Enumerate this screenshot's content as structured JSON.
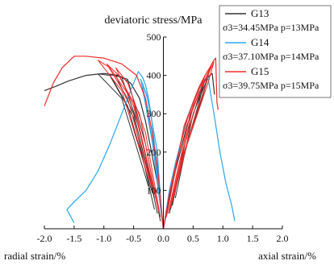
{
  "chart_data": {
    "type": "line",
    "ylabel": "deviatoric stress/MPa",
    "xlabel_right": "axial strain/%",
    "xlabel_left": "radial strain/%",
    "xlim": [
      -2.0,
      2.0
    ],
    "ylim": [
      0,
      500
    ],
    "x_ticks": [
      -2.0,
      -1.5,
      -1.0,
      -0.5,
      0.0,
      0.5,
      1.0,
      1.5,
      2.0
    ],
    "x_tick_labels": [
      "-2.0",
      "-1.5",
      "-1.0",
      "-0.5",
      "0.0",
      "0.5",
      "1.0",
      "1.5",
      "2.0"
    ],
    "y_ticks": [
      0,
      100,
      200,
      300,
      400,
      500
    ],
    "y_tick_labels": [
      "0",
      "100",
      "200",
      "300",
      "400",
      "500"
    ],
    "grid": false,
    "legend_position": "top-right",
    "series": [
      {
        "name": "G13",
        "note": "σ3=34.45MPa p=13MPa",
        "color": "#333333",
        "axial": [
          [
            0,
            0
          ],
          [
            0.1,
            80
          ],
          [
            0.2,
            150
          ],
          [
            0.3,
            210
          ],
          [
            0.4,
            270
          ],
          [
            0.5,
            315
          ],
          [
            0.6,
            355
          ],
          [
            0.7,
            385
          ],
          [
            0.78,
            400
          ],
          [
            0.82,
            405
          ],
          [
            0.86,
            350
          ]
        ],
        "radial": [
          [
            0,
            0
          ],
          [
            -0.05,
            60
          ],
          [
            -0.1,
            120
          ],
          [
            -0.2,
            200
          ],
          [
            -0.3,
            280
          ],
          [
            -0.4,
            340
          ],
          [
            -0.55,
            380
          ],
          [
            -0.75,
            400
          ],
          [
            -1.0,
            405
          ],
          [
            -1.3,
            400
          ],
          [
            -1.6,
            385
          ],
          [
            -1.8,
            372
          ],
          [
            -2.0,
            360
          ]
        ],
        "loops_axial": [
          [
            [
              0.15,
              60
            ],
            [
              0.4,
              250
            ],
            [
              0.7,
              390
            ],
            [
              0.6,
              330
            ],
            [
              0.3,
              170
            ],
            [
              0.1,
              40
            ]
          ],
          [
            [
              0.2,
              80
            ],
            [
              0.5,
              300
            ],
            [
              0.75,
              395
            ],
            [
              0.65,
              340
            ],
            [
              0.35,
              200
            ],
            [
              0.12,
              50
            ]
          ]
        ],
        "loops_radial": [
          [
            [
              -0.05,
              20
            ],
            [
              -0.3,
              220
            ],
            [
              -0.6,
              390
            ],
            [
              -0.8,
              400
            ],
            [
              -0.5,
              300
            ],
            [
              -0.15,
              80
            ]
          ],
          [
            [
              -0.1,
              40
            ],
            [
              -0.4,
              260
            ],
            [
              -0.7,
              395
            ],
            [
              -0.9,
              402
            ],
            [
              -0.6,
              320
            ],
            [
              -0.2,
              100
            ]
          ],
          [
            [
              -0.15,
              50
            ],
            [
              -0.5,
              290
            ],
            [
              -0.9,
              400
            ],
            [
              -1.1,
              404
            ],
            [
              -0.7,
              340
            ],
            [
              -0.25,
              110
            ]
          ]
        ]
      },
      {
        "name": "G14",
        "note": "σ3=37.10MPa p=14MPa",
        "color": "#2aa6ee",
        "axial": [
          [
            0,
            0
          ],
          [
            0.1,
            100
          ],
          [
            0.2,
            170
          ],
          [
            0.3,
            230
          ],
          [
            0.4,
            290
          ],
          [
            0.5,
            330
          ],
          [
            0.6,
            365
          ],
          [
            0.7,
            390
          ],
          [
            0.75,
            395
          ],
          [
            0.85,
            300
          ],
          [
            0.95,
            200
          ],
          [
            1.05,
            120
          ],
          [
            1.15,
            60
          ],
          [
            1.2,
            20
          ]
        ],
        "radial": [
          [
            0,
            0
          ],
          [
            -0.05,
            70
          ],
          [
            -0.1,
            150
          ],
          [
            -0.15,
            220
          ],
          [
            -0.2,
            290
          ],
          [
            -0.25,
            340
          ],
          [
            -0.3,
            375
          ],
          [
            -0.35,
            395
          ],
          [
            -0.42,
            410
          ],
          [
            -0.5,
            380
          ],
          [
            -0.7,
            300
          ],
          [
            -0.9,
            220
          ],
          [
            -1.1,
            150
          ],
          [
            -1.3,
            100
          ],
          [
            -1.5,
            70
          ],
          [
            -1.62,
            50
          ],
          [
            -1.5,
            15
          ]
        ],
        "loops_radial": [
          [
            [
              -0.02,
              20
            ],
            [
              -0.1,
              200
            ],
            [
              -0.25,
              330
            ],
            [
              -0.35,
              380
            ],
            [
              -0.3,
              330
            ],
            [
              -0.15,
              200
            ],
            [
              -0.05,
              60
            ]
          ],
          [
            [
              -0.03,
              30
            ],
            [
              -0.12,
              220
            ],
            [
              -0.28,
              350
            ],
            [
              -0.38,
              390
            ],
            [
              -0.32,
              340
            ],
            [
              -0.18,
              220
            ],
            [
              -0.06,
              70
            ]
          ]
        ]
      },
      {
        "name": "G15",
        "note": "σ3=39.75MPa p=15MPa",
        "color": "#ef2a2a",
        "axial": [
          [
            0,
            0
          ],
          [
            0.1,
            90
          ],
          [
            0.2,
            160
          ],
          [
            0.3,
            225
          ],
          [
            0.4,
            285
          ],
          [
            0.5,
            330
          ],
          [
            0.6,
            370
          ],
          [
            0.7,
            400
          ],
          [
            0.78,
            420
          ],
          [
            0.85,
            440
          ],
          [
            0.88,
            445
          ],
          [
            0.9,
            330
          ],
          [
            0.92,
            310
          ]
        ],
        "radial": [
          [
            0,
            0
          ],
          [
            -0.05,
            80
          ],
          [
            -0.1,
            160
          ],
          [
            -0.2,
            260
          ],
          [
            -0.3,
            340
          ],
          [
            -0.45,
            400
          ],
          [
            -0.7,
            430
          ],
          [
            -1.0,
            445
          ],
          [
            -1.3,
            450
          ],
          [
            -1.5,
            450
          ],
          [
            -1.7,
            420
          ],
          [
            -1.85,
            380
          ],
          [
            -1.95,
            340
          ],
          [
            -2.0,
            320
          ]
        ],
        "loops_axial": [
          [
            [
              0.05,
              30
            ],
            [
              0.35,
              270
            ],
            [
              0.7,
              400
            ],
            [
              0.6,
              350
            ],
            [
              0.25,
              160
            ],
            [
              0.08,
              40
            ]
          ],
          [
            [
              0.1,
              50
            ],
            [
              0.45,
              300
            ],
            [
              0.8,
              425
            ],
            [
              0.7,
              370
            ],
            [
              0.35,
              200
            ],
            [
              0.12,
              60
            ]
          ],
          [
            [
              0.12,
              55
            ],
            [
              0.5,
              320
            ],
            [
              0.85,
              435
            ],
            [
              0.75,
              380
            ],
            [
              0.4,
              220
            ],
            [
              0.15,
              70
            ]
          ]
        ],
        "loops_radial": [
          [
            [
              -0.05,
              30
            ],
            [
              -0.3,
              250
            ],
            [
              -0.6,
              380
            ],
            [
              -0.8,
              420
            ],
            [
              -0.5,
              320
            ],
            [
              -0.15,
              90
            ]
          ],
          [
            [
              -0.08,
              45
            ],
            [
              -0.4,
              300
            ],
            [
              -0.75,
              400
            ],
            [
              -0.95,
              430
            ],
            [
              -0.6,
              340
            ],
            [
              -0.2,
              110
            ]
          ],
          [
            [
              -0.1,
              60
            ],
            [
              -0.5,
              330
            ],
            [
              -0.9,
              420
            ],
            [
              -1.1,
              440
            ],
            [
              -0.7,
              360
            ],
            [
              -0.25,
              130
            ]
          ]
        ]
      }
    ]
  }
}
